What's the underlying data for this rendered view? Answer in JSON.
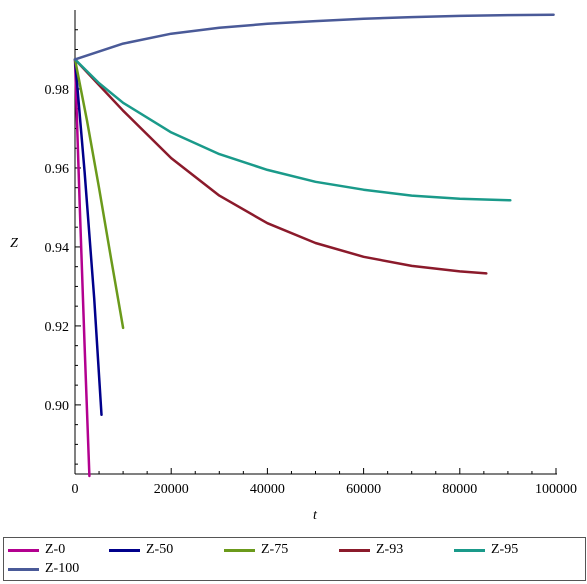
{
  "chart_data": {
    "type": "line",
    "xlabel": "t",
    "ylabel": "Z",
    "xlim": [
      0,
      100000
    ],
    "ylim": [
      0.8825,
      1.0
    ],
    "x_ticks": [
      {
        "value": 0,
        "label": "0"
      },
      {
        "value": 20000,
        "label": "20000"
      },
      {
        "value": 40000,
        "label": "40000"
      },
      {
        "value": 60000,
        "label": "60000"
      },
      {
        "value": 80000,
        "label": "80000"
      },
      {
        "value": 100000,
        "label": "100000"
      }
    ],
    "y_ticks": [
      {
        "value": 0.9,
        "label": "0.90"
      },
      {
        "value": 0.92,
        "label": "0.92"
      },
      {
        "value": 0.94,
        "label": "0.94"
      },
      {
        "value": 0.96,
        "label": "0.96"
      },
      {
        "value": 0.98,
        "label": "0.98"
      }
    ],
    "grid": false,
    "legend_position": "bottom",
    "series": [
      {
        "name": "Z-0",
        "color": "#b3008f",
        "x": [
          0,
          1000,
          2000,
          3000
        ],
        "y": [
          0.9875,
          0.95,
          0.915,
          0.882
        ]
      },
      {
        "name": "Z-50",
        "color": "#00008b",
        "x": [
          0,
          2000,
          4000,
          5500
        ],
        "y": [
          0.9875,
          0.959,
          0.927,
          0.8975
        ]
      },
      {
        "name": "Z-75",
        "color": "#6b9a1b",
        "x": [
          0,
          2500,
          5000,
          7500,
          10000
        ],
        "y": [
          0.9875,
          0.972,
          0.955,
          0.937,
          0.9195
        ]
      },
      {
        "name": "Z-93",
        "color": "#8b1a2b",
        "x": [
          0,
          5000,
          10000,
          20000,
          30000,
          40000,
          50000,
          60000,
          70000,
          80000,
          85500
        ],
        "y": [
          0.9875,
          0.981,
          0.9745,
          0.9625,
          0.953,
          0.946,
          0.941,
          0.9375,
          0.9352,
          0.9338,
          0.9333
        ]
      },
      {
        "name": "Z-95",
        "color": "#1a9a8a",
        "x": [
          0,
          5000,
          10000,
          20000,
          30000,
          40000,
          50000,
          60000,
          70000,
          80000,
          90500
        ],
        "y": [
          0.9875,
          0.9815,
          0.9765,
          0.969,
          0.9635,
          0.9595,
          0.9565,
          0.9545,
          0.953,
          0.9522,
          0.9518
        ]
      },
      {
        "name": "Z-100",
        "color": "#4a5a98",
        "x": [
          0,
          10000,
          20000,
          30000,
          40000,
          50000,
          60000,
          70000,
          80000,
          90000,
          99500
        ],
        "y": [
          0.9875,
          0.9915,
          0.994,
          0.9955,
          0.9965,
          0.9972,
          0.9978,
          0.9982,
          0.9985,
          0.9987,
          0.9988
        ]
      }
    ]
  }
}
